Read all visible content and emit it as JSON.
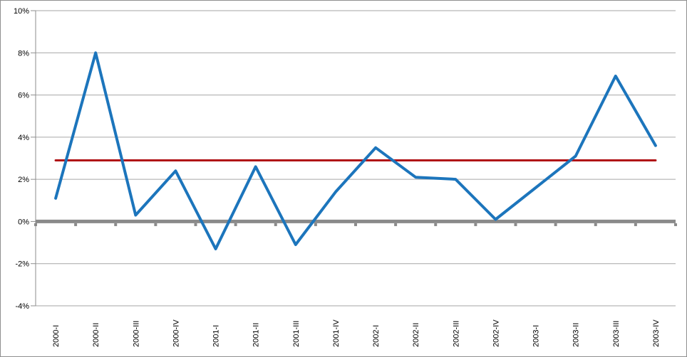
{
  "chart_data": {
    "type": "line",
    "categories": [
      "2000-I",
      "2000-II",
      "2000-III",
      "2000-IV",
      "2001-I",
      "2001-II",
      "2001-III",
      "2001-IV",
      "2002-I",
      "2002-II",
      "2002-III",
      "2002-IV",
      "2003-I",
      "2003-II",
      "2003-III",
      "2003-IV"
    ],
    "series": [
      {
        "name": "quarterly-growth-line",
        "color": "#1C75BC",
        "width": 4,
        "values": [
          1.1,
          8.0,
          0.3,
          2.4,
          -1.3,
          2.6,
          -1.1,
          1.4,
          3.5,
          2.1,
          2.0,
          0.1,
          1.6,
          3.1,
          6.9,
          3.6
        ]
      },
      {
        "name": "average-reference-line",
        "color": "#B01116",
        "width": 3,
        "constant": 2.9
      }
    ],
    "ylim": [
      -4,
      10
    ],
    "ytick_step": 2,
    "ytick_values": [
      10,
      8,
      6,
      4,
      2,
      0,
      -2,
      -4
    ],
    "ytick_labels": [
      "10%",
      "8%",
      "6%",
      "4%",
      "2%",
      "0%",
      "-2%",
      "-4%"
    ],
    "grid": true,
    "legend": "none",
    "zero_axis_emphasized": true
  },
  "colors": {
    "gridline": "#A6A6A6",
    "axis": "#8E8E8E",
    "zero_line": "#8A8A8A",
    "background": "#FFFFFF",
    "border": "#8F8F8F",
    "text": "#000000"
  }
}
